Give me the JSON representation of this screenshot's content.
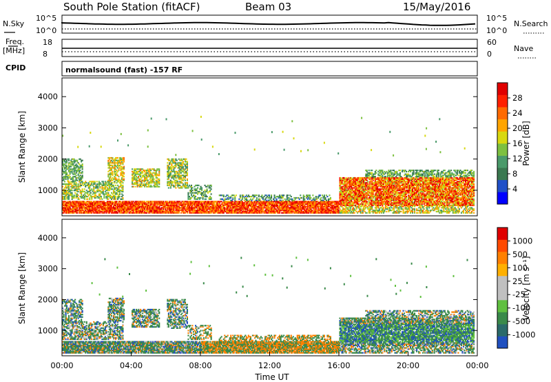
{
  "header": {
    "station": "South Pole Station (fitACF)",
    "beam": "Beam 03",
    "date": "15/May/2016"
  },
  "top_panels": {
    "sky": {
      "label": "N.Sky",
      "ticks": [
        "10^5",
        "10^0"
      ]
    },
    "search": {
      "label": "N.Search",
      "ticks": [
        "10^5",
        "10^0"
      ]
    },
    "freq": {
      "label_1": "Freq.",
      "label_2": "[MHz]",
      "ticks": [
        "18",
        "8"
      ]
    },
    "nave": {
      "label": "Nave",
      "ticks": [
        "60",
        "0"
      ]
    },
    "cpid": {
      "label": "CPID",
      "value": "normalsound (fast) -157 RF"
    }
  },
  "colors": {
    "power_scale": [
      "#0000ff",
      "#2050c8",
      "#3a7850",
      "#4a9a6a",
      "#7dc040",
      "#d8d810",
      "#ffa500",
      "#ff6a00",
      "#ff2000",
      "#e00000"
    ],
    "velocity_scale": [
      "#e00000",
      "#ff4a00",
      "#ff8000",
      "#ffb000",
      "#c0c0c0",
      "#c0c0c0",
      "#60c040",
      "#3a8a4a",
      "#2a6a6a",
      "#2050c0"
    ]
  },
  "chart_data": [
    {
      "type": "heatmap",
      "name": "power",
      "xlabel": "",
      "ylabel": "Slant Range [km]",
      "ylim": [
        180,
        4600
      ],
      "yticks": [
        "4000",
        "3000",
        "2000",
        "1000"
      ],
      "colorbar_label": "Power [dB]",
      "colorbar_ticks": [
        "28",
        "24",
        "20",
        "16",
        "12",
        "8",
        "4"
      ],
      "clim": [
        0,
        30
      ]
    },
    {
      "type": "heatmap",
      "name": "velocity",
      "xlabel": "Time UT",
      "ylabel": "Slant Range [km]",
      "ylim": [
        180,
        4600
      ],
      "yticks": [
        "4000",
        "3000",
        "2000",
        "1000"
      ],
      "xticks": [
        "00:00",
        "04:00",
        "08:00",
        "12:00",
        "16:00",
        "20:00",
        "00:00"
      ],
      "xlim": [
        0,
        24
      ],
      "colorbar_label": "Velocity [m s⁻¹]",
      "colorbar_ticks": [
        "1000",
        "500",
        "100",
        "25",
        "-25",
        "-100",
        "-500",
        "-1000"
      ]
    }
  ]
}
